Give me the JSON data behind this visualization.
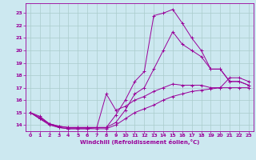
{
  "xlabel": "Windchill (Refroidissement éolien,°C)",
  "bg_color": "#cce8f0",
  "grid_color": "#aacccc",
  "line_color": "#990099",
  "xlim": [
    -0.5,
    23.5
  ],
  "ylim": [
    13.5,
    23.8
  ],
  "xticks": [
    0,
    1,
    2,
    3,
    4,
    5,
    6,
    7,
    8,
    9,
    10,
    11,
    12,
    13,
    14,
    15,
    16,
    17,
    18,
    19,
    20,
    21,
    22,
    23
  ],
  "yticks": [
    14,
    15,
    16,
    17,
    18,
    19,
    20,
    21,
    22,
    23
  ],
  "series": [
    {
      "x": [
        0,
        1,
        2,
        3,
        4,
        5,
        6,
        7,
        8,
        9,
        10,
        11,
        12,
        13,
        14,
        15,
        16,
        17,
        18,
        19,
        20,
        21,
        22,
        23
      ],
      "y": [
        15.0,
        14.7,
        14.1,
        13.9,
        13.8,
        13.8,
        13.8,
        13.8,
        13.8,
        14.8,
        16.0,
        17.5,
        18.3,
        22.8,
        23.0,
        23.3,
        22.2,
        21.0,
        20.0,
        18.5,
        18.5,
        17.5,
        17.5,
        17.2
      ]
    },
    {
      "x": [
        0,
        1,
        2,
        3,
        4,
        5,
        6,
        7,
        8,
        9,
        10,
        11,
        12,
        13,
        14,
        15,
        16,
        17,
        18,
        19,
        20,
        21,
        22,
        23
      ],
      "y": [
        15.0,
        14.6,
        14.1,
        13.9,
        13.8,
        13.8,
        13.8,
        13.8,
        13.8,
        14.2,
        15.2,
        16.5,
        17.0,
        18.5,
        20.0,
        21.5,
        20.5,
        20.0,
        19.5,
        18.5,
        18.5,
        17.5,
        17.5,
        17.2
      ]
    },
    {
      "x": [
        0,
        1,
        2,
        3,
        4,
        5,
        6,
        7,
        8,
        9,
        10,
        11,
        12,
        13,
        14,
        15,
        16,
        17,
        18,
        19,
        20,
        21,
        22,
        23
      ],
      "y": [
        15.0,
        14.5,
        14.1,
        13.8,
        13.7,
        13.7,
        13.7,
        13.8,
        16.5,
        15.2,
        15.5,
        16.0,
        16.3,
        16.7,
        17.0,
        17.3,
        17.2,
        17.2,
        17.2,
        17.0,
        17.0,
        17.8,
        17.8,
        17.5
      ]
    },
    {
      "x": [
        0,
        1,
        2,
        3,
        4,
        5,
        6,
        7,
        8,
        9,
        10,
        11,
        12,
        13,
        14,
        15,
        16,
        17,
        18,
        19,
        20,
        21,
        22,
        23
      ],
      "y": [
        15.0,
        14.5,
        14.0,
        13.8,
        13.7,
        13.7,
        13.7,
        13.7,
        13.7,
        14.0,
        14.5,
        15.0,
        15.3,
        15.6,
        16.0,
        16.3,
        16.5,
        16.7,
        16.8,
        16.9,
        17.0,
        17.0,
        17.0,
        17.0
      ]
    }
  ]
}
